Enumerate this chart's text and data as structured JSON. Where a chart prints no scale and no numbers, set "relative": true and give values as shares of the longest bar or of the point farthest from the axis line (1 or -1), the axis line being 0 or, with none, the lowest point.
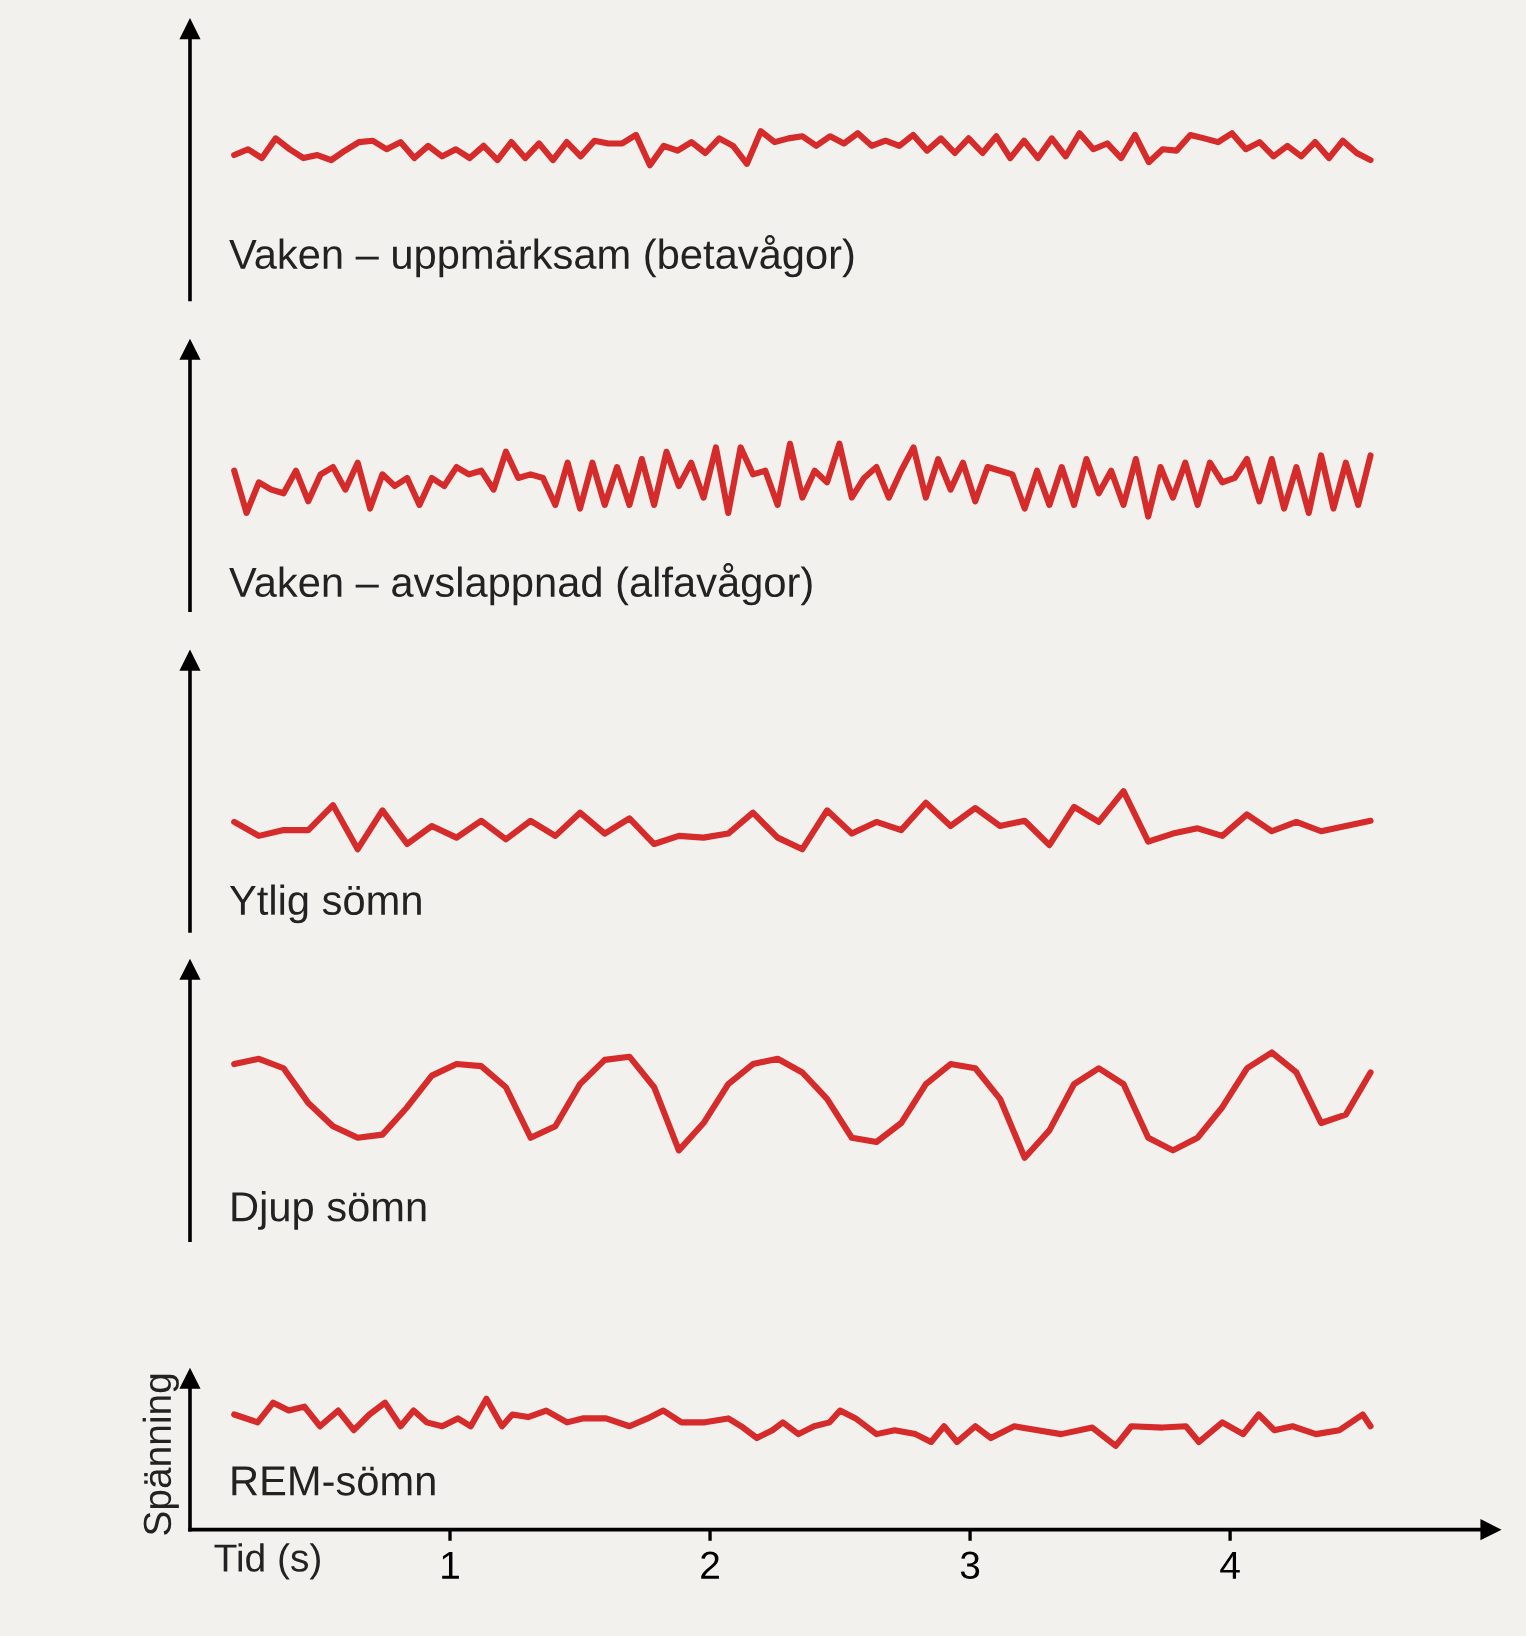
{
  "chart_data": [
    {
      "type": "line",
      "title": "Vaken – uppmärksam (betavågor)",
      "relative": true,
      "tick_labels": false,
      "categories": [
        null,
        null,
        null,
        null,
        null,
        null,
        null,
        null,
        null,
        null,
        null,
        null,
        null,
        null,
        null,
        null,
        null,
        null,
        null,
        null,
        null,
        null,
        null,
        null,
        null,
        null,
        null,
        null,
        null,
        null,
        null,
        null,
        null,
        null,
        null,
        null,
        null,
        null,
        null,
        null,
        null,
        null,
        null,
        null,
        null,
        null,
        null,
        null,
        null,
        null,
        null,
        null,
        null,
        null,
        null,
        null,
        null,
        null,
        null,
        null,
        null,
        null,
        null,
        null,
        null,
        null,
        null,
        null,
        null,
        null,
        null,
        null,
        null,
        null,
        null,
        null,
        null,
        null,
        null,
        null,
        null,
        null,
        null
      ],
      "series": [
        {
          "color": "#d62b2b",
          "values": [
            0.3,
            0.47,
            0.21,
            0.79,
            0.47,
            0.21,
            0.3,
            0.15,
            0.43,
            0.68,
            0.72,
            0.47,
            0.68,
            0.21,
            0.57,
            0.26,
            0.47,
            0.21,
            0.57,
            0.15,
            0.68,
            0.21,
            0.64,
            0.15,
            0.68,
            0.26,
            0.72,
            0.64,
            0.64,
            0.89,
            0,
            0.57,
            0.43,
            0.68,
            0.36,
            0.79,
            0.57,
            0.04,
            1,
            0.68,
            0.79,
            0.85,
            0.57,
            0.85,
            0.64,
            0.94,
            0.57,
            0.72,
            0.57,
            0.89,
            0.43,
            0.79,
            0.36,
            0.79,
            0.36,
            0.85,
            0.21,
            0.72,
            0.21,
            0.79,
            0.26,
            0.94,
            0.47,
            0.64,
            0.21,
            0.89,
            0.09,
            0.47,
            0.43,
            0.89,
            0.79,
            0.68,
            0.94,
            0.47,
            0.68,
            0.26,
            0.57,
            0.26,
            0.68,
            0.21,
            0.72,
            0.36,
            0.15
          ]
        }
      ]
    },
    {
      "type": "line",
      "title": "Vaken – avslappnad (alfavågor)",
      "relative": true,
      "tick_labels": false,
      "categories": [
        null,
        null,
        null,
        null,
        null,
        null,
        null,
        null,
        null,
        null,
        null,
        null,
        null,
        null,
        null,
        null,
        null,
        null,
        null,
        null,
        null,
        null,
        null,
        null,
        null,
        null,
        null,
        null,
        null,
        null,
        null,
        null,
        null,
        null,
        null,
        null,
        null,
        null,
        null,
        null,
        null,
        null,
        null,
        null,
        null,
        null,
        null,
        null,
        null,
        null,
        null,
        null,
        null,
        null,
        null,
        null,
        null,
        null,
        null,
        null,
        null,
        null,
        null,
        null,
        null,
        null,
        null,
        null,
        null,
        null,
        null,
        null,
        null,
        null,
        null,
        null,
        null,
        null,
        null,
        null,
        null,
        null,
        null,
        null,
        null,
        null,
        null,
        null,
        null,
        null,
        null,
        null,
        null
      ],
      "series": [
        {
          "color": "#d62b2b",
          "values": [
            0.63,
            0.05,
            0.47,
            0.37,
            0.32,
            0.63,
            0.21,
            0.58,
            0.68,
            0.37,
            0.74,
            0.11,
            0.58,
            0.42,
            0.53,
            0.16,
            0.53,
            0.42,
            0.68,
            0.58,
            0.63,
            0.37,
            0.89,
            0.53,
            0.58,
            0.53,
            0.16,
            0.74,
            0.11,
            0.74,
            0.16,
            0.68,
            0.16,
            0.79,
            0.16,
            0.89,
            0.42,
            0.74,
            0.26,
            0.95,
            0.05,
            0.95,
            0.58,
            0.63,
            0.16,
            1,
            0.26,
            0.63,
            0.47,
            1,
            0.26,
            0.53,
            0.68,
            0.26,
            0.63,
            0.95,
            0.26,
            0.79,
            0.37,
            0.74,
            0.21,
            0.68,
            0.63,
            0.58,
            0.11,
            0.63,
            0.16,
            0.68,
            0.16,
            0.79,
            0.32,
            0.63,
            0.16,
            0.79,
            0,
            0.68,
            0.26,
            0.74,
            0.16,
            0.74,
            0.47,
            0.53,
            0.79,
            0.21,
            0.79,
            0.11,
            0.68,
            0.05,
            0.84,
            0.11,
            0.74,
            0.16,
            0.84
          ]
        }
      ]
    },
    {
      "type": "line",
      "title": "Ytlig sömn",
      "relative": true,
      "tick_labels": false,
      "categories": [
        null,
        null,
        null,
        null,
        null,
        null,
        null,
        null,
        null,
        null,
        null,
        null,
        null,
        null,
        null,
        null,
        null,
        null,
        null,
        null,
        null,
        null,
        null,
        null,
        null,
        null,
        null,
        null,
        null,
        null,
        null,
        null,
        null,
        null,
        null,
        null,
        null,
        null,
        null,
        null,
        null,
        null,
        null,
        null,
        null,
        null,
        null
      ],
      "series": [
        {
          "color": "#d62b2b",
          "values": [
            0.47,
            0.23,
            0.33,
            0.33,
            0.76,
            0,
            0.67,
            0.09,
            0.4,
            0.2,
            0.49,
            0.17,
            0.49,
            0.23,
            0.63,
            0.27,
            0.53,
            0.09,
            0.23,
            0.2,
            0.27,
            0.63,
            0.2,
            0,
            0.67,
            0.27,
            0.47,
            0.33,
            0.8,
            0.4,
            0.71,
            0.4,
            0.49,
            0.07,
            0.73,
            0.47,
            1,
            0.13,
            0.27,
            0.36,
            0.23,
            0.6,
            0.31,
            0.47,
            0.31,
            0.4,
            0.49
          ]
        }
      ]
    },
    {
      "type": "line",
      "title": "Djup sömn",
      "relative": true,
      "tick_labels": false,
      "categories": [
        null,
        null,
        null,
        null,
        null,
        null,
        null,
        null,
        null,
        null,
        null,
        null,
        null,
        null,
        null,
        null,
        null,
        null,
        null,
        null,
        null,
        null,
        null,
        null,
        null,
        null,
        null,
        null,
        null,
        null,
        null,
        null,
        null,
        null,
        null,
        null,
        null,
        null,
        null,
        null,
        null,
        null,
        null,
        null,
        null,
        null,
        null
      ],
      "series": [
        {
          "color": "#d62b2b",
          "values": [
            0.89,
            0.94,
            0.85,
            0.52,
            0.3,
            0.19,
            0.22,
            0.48,
            0.78,
            0.89,
            0.87,
            0.67,
            0.19,
            0.3,
            0.7,
            0.93,
            0.96,
            0.67,
            0.07,
            0.33,
            0.7,
            0.89,
            0.94,
            0.81,
            0.56,
            0.19,
            0.15,
            0.33,
            0.7,
            0.89,
            0.85,
            0.56,
            0,
            0.26,
            0.7,
            0.85,
            0.7,
            0.19,
            0.07,
            0.19,
            0.48,
            0.85,
            1,
            0.81,
            0.33,
            0.41,
            0.81
          ]
        }
      ]
    },
    {
      "type": "line",
      "title": "REM-sömn",
      "xlabel": "Tid (s)",
      "ylabel": "Spänning",
      "relative": true,
      "xlim": [
        0,
        5
      ],
      "xticks": [
        1,
        2,
        3,
        4
      ],
      "tick_labels": "x",
      "series": [
        {
          "color": "#d62b2b",
          "x": [
            0.17,
            0.26,
            0.32,
            0.38,
            0.44,
            0.5,
            0.57,
            0.63,
            0.69,
            0.75,
            0.81,
            0.86,
            0.91,
            0.97,
            1.03,
            1.08,
            1.14,
            1.2,
            1.24,
            1.3,
            1.37,
            1.45,
            1.51,
            1.6,
            1.69,
            1.76,
            1.82,
            1.89,
            1.98,
            2.07,
            2.12,
            2.18,
            2.24,
            2.28,
            2.34,
            2.4,
            2.46,
            2.5,
            2.56,
            2.64,
            2.71,
            2.79,
            2.85,
            2.9,
            2.95,
            3.02,
            3.08,
            3.17,
            3.26,
            3.35,
            3.47,
            3.56,
            3.62,
            3.74,
            3.83,
            3.88,
            3.97,
            4.05,
            4.11,
            4.17,
            4.24,
            4.33,
            4.42,
            4.51,
            4.54
          ],
          "values": [
            0.88,
            0.82,
            0.97,
            0.91,
            0.94,
            0.79,
            0.91,
            0.76,
            0.88,
            0.97,
            0.79,
            0.91,
            0.82,
            0.79,
            0.85,
            0.79,
            1,
            0.79,
            0.88,
            0.86,
            0.91,
            0.82,
            0.85,
            0.85,
            0.79,
            0.85,
            0.91,
            0.82,
            0.82,
            0.85,
            0.79,
            0.7,
            0.76,
            0.82,
            0.73,
            0.79,
            0.82,
            0.91,
            0.85,
            0.73,
            0.76,
            0.73,
            0.67,
            0.79,
            0.67,
            0.79,
            0.7,
            0.79,
            0.76,
            0.73,
            0.78,
            0.64,
            0.79,
            0.78,
            0.79,
            0.67,
            0.82,
            0.73,
            0.88,
            0.76,
            0.79,
            0.73,
            0.76,
            0.88,
            0.79
          ]
        }
      ]
    }
  ]
}
